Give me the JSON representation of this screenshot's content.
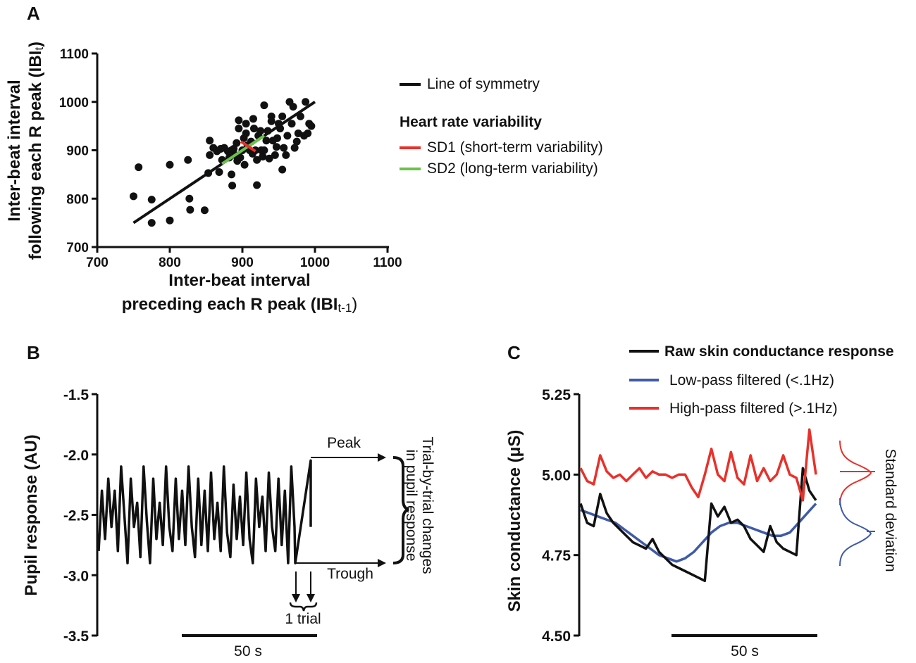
{
  "colors": {
    "black": "#111111",
    "red": "#e8312a",
    "green": "#6cc24a",
    "blue": "#3f5aa8"
  },
  "panels": {
    "a": "A",
    "b": "B",
    "c": "C"
  },
  "chart_data": [
    {
      "type": "scatter",
      "panel": "A",
      "xlabel_line1": "Inter-beat interval",
      "xlabel_line2_prefix": "preceding each R peak (",
      "xlabel_line2_ibi": "IBI",
      "xlabel_line2_sub": "t-1",
      "xlabel_line2_suffix": ")",
      "ylabel_line1": "Inter-beat interval",
      "ylabel_line2_prefix": "following each R peak (",
      "ylabel_line2_ibi": "IBI",
      "ylabel_line2_sub": "t",
      "ylabel_line2_suffix": ")",
      "xlim": [
        700,
        1100
      ],
      "ylim": [
        700,
        1100
      ],
      "xticks": [
        "700",
        "800",
        "900",
        "1000",
        "1100"
      ],
      "yticks": [
        "700",
        "800",
        "900",
        "1000",
        "1100"
      ],
      "points": [
        [
          750,
          805
        ],
        [
          757,
          865
        ],
        [
          775,
          798
        ],
        [
          775,
          750
        ],
        [
          800,
          870
        ],
        [
          800,
          755
        ],
        [
          825,
          880
        ],
        [
          827,
          800
        ],
        [
          828,
          777
        ],
        [
          848,
          776
        ],
        [
          853,
          853
        ],
        [
          855,
          890
        ],
        [
          855,
          920
        ],
        [
          860,
          905
        ],
        [
          865,
          898
        ],
        [
          868,
          855
        ],
        [
          870,
          903
        ],
        [
          872,
          880
        ],
        [
          875,
          905
        ],
        [
          880,
          898
        ],
        [
          882,
          885
        ],
        [
          885,
          900
        ],
        [
          885,
          850
        ],
        [
          886,
          827
        ],
        [
          888,
          903
        ],
        [
          890,
          890
        ],
        [
          892,
          915
        ],
        [
          893,
          878
        ],
        [
          895,
          945
        ],
        [
          895,
          962
        ],
        [
          897,
          885
        ],
        [
          900,
          900
        ],
        [
          902,
          925
        ],
        [
          903,
          870
        ],
        [
          905,
          935
        ],
        [
          905,
          955
        ],
        [
          907,
          910
        ],
        [
          910,
          900
        ],
        [
          912,
          918
        ],
        [
          914,
          893
        ],
        [
          915,
          965
        ],
        [
          916,
          945
        ],
        [
          918,
          900
        ],
        [
          920,
          828
        ],
        [
          920,
          880
        ],
        [
          922,
          930
        ],
        [
          925,
          940
        ],
        [
          926,
          900
        ],
        [
          928,
          887
        ],
        [
          930,
          900
        ],
        [
          930,
          993
        ],
        [
          933,
          920
        ],
        [
          935,
          940
        ],
        [
          937,
          883
        ],
        [
          940,
          960
        ],
        [
          940,
          970
        ],
        [
          942,
          920
        ],
        [
          945,
          890
        ],
        [
          947,
          907
        ],
        [
          948,
          925
        ],
        [
          950,
          955
        ],
        [
          952,
          945
        ],
        [
          955,
          860
        ],
        [
          955,
          970
        ],
        [
          957,
          905
        ],
        [
          960,
          890
        ],
        [
          962,
          930
        ],
        [
          965,
          1000
        ],
        [
          968,
          955
        ],
        [
          970,
          990
        ],
        [
          972,
          905
        ],
        [
          975,
          918
        ],
        [
          977,
          935
        ],
        [
          980,
          970
        ],
        [
          985,
          930
        ],
        [
          990,
          935
        ],
        [
          992,
          955
        ],
        [
          995,
          950
        ],
        [
          987,
          1000
        ]
      ],
      "line_of_symmetry": {
        "from": [
          750,
          750
        ],
        "to": [
          1000,
          1000
        ]
      },
      "sd1_segment": {
        "from": [
          898,
          918
        ],
        "to": [
          918,
          898
        ]
      },
      "sd2_segment": {
        "from": [
          872,
          872
        ],
        "to": [
          930,
          930
        ]
      },
      "legend": {
        "symmetry": "Line of symmetry",
        "hrv_title": "Heart rate variability",
        "sd1": "SD1 (short-term variability)",
        "sd2": "SD2 (long-term variability)"
      }
    },
    {
      "type": "line",
      "panel": "B",
      "ylabel": "Pupil response (AU)",
      "ylim": [
        -3.5,
        -1.5
      ],
      "yticks": [
        "-1.5",
        "-2.0",
        "-2.5",
        "-3.0",
        "-3.5"
      ],
      "series": [
        {
          "name": "Pupil response",
          "values": [
            -2.8,
            -2.3,
            -2.7,
            -2.2,
            -2.6,
            -2.3,
            -2.8,
            -2.1,
            -2.5,
            -2.9,
            -2.2,
            -2.6,
            -2.4,
            -2.85,
            -2.1,
            -2.55,
            -2.9,
            -2.2,
            -2.7,
            -2.4,
            -2.75,
            -2.1,
            -2.6,
            -2.8,
            -2.2,
            -2.7,
            -2.3,
            -2.75,
            -2.1,
            -2.6,
            -2.85,
            -2.2,
            -2.75,
            -2.3,
            -2.8,
            -2.15,
            -2.7,
            -2.4,
            -2.8,
            -2.1,
            -2.65,
            -2.85,
            -2.25,
            -2.7,
            -2.35,
            -2.75,
            -2.15,
            -2.7,
            -2.9,
            -2.2,
            -2.6,
            -2.35,
            -2.8,
            -2.15,
            -2.6,
            -2.8,
            -2.2,
            -2.75,
            -2.3,
            -2.9,
            -2.1,
            -2.6
          ]
        }
      ],
      "annotations": {
        "peak": "Peak",
        "trough": "Trough",
        "trial": "1 trial",
        "changes_line1": "Trial-by-trial changes",
        "changes_line2": "in pupil response",
        "peak_value": -2.05,
        "trough_value": -2.9,
        "end_value": -2.6
      },
      "scale_bar": "50 s"
    },
    {
      "type": "line",
      "panel": "C",
      "ylabel": "Skin conductance (μS)",
      "ylim": [
        4.5,
        5.25
      ],
      "yticks": [
        "5.25",
        "5.00",
        "4.75",
        "4.50"
      ],
      "series": [
        {
          "name": "Raw skin conductance response",
          "color": "#111111",
          "values": [
            4.91,
            4.85,
            4.84,
            4.94,
            4.88,
            4.85,
            4.83,
            4.81,
            4.79,
            4.78,
            4.77,
            4.8,
            4.76,
            4.74,
            4.72,
            4.71,
            4.7,
            4.69,
            4.68,
            4.67,
            4.91,
            4.87,
            4.9,
            4.85,
            4.86,
            4.84,
            4.8,
            4.78,
            4.76,
            4.84,
            4.79,
            4.77,
            4.76,
            4.75,
            5.02,
            4.95,
            4.92
          ]
        },
        {
          "name": "Low-pass filtered (<.1Hz)",
          "color": "#3f5aa8",
          "values": [
            4.89,
            4.88,
            4.87,
            4.86,
            4.85,
            4.83,
            4.81,
            4.79,
            4.77,
            4.75,
            4.74,
            4.73,
            4.74,
            4.76,
            4.79,
            4.82,
            4.84,
            4.85,
            4.85,
            4.84,
            4.83,
            4.82,
            4.81,
            4.81,
            4.82,
            4.85,
            4.88,
            4.91
          ]
        },
        {
          "name": "High-pass filtered (>.1Hz)",
          "color": "#e8312a",
          "values": [
            5.02,
            4.98,
            4.97,
            5.06,
            5.01,
            4.99,
            5.0,
            4.98,
            5.0,
            5.02,
            4.99,
            5.01,
            5.0,
            5.0,
            4.99,
            5.0,
            5.0,
            4.96,
            4.93,
            5.0,
            5.08,
            5.0,
            4.98,
            5.07,
            4.99,
            4.97,
            5.06,
            4.98,
            5.02,
            4.98,
            5.0,
            5.06,
            5.0,
            4.99,
            4.92,
            5.14,
            5.0
          ]
        }
      ],
      "side_label": "Standard deviation",
      "scale_bar": "50 s"
    }
  ]
}
